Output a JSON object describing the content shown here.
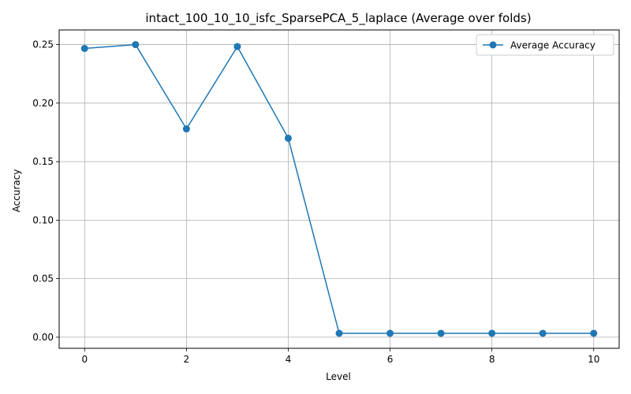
{
  "chart_data": {
    "type": "line",
    "title": "intact_100_10_10_isfc_SparsePCA_5_laplace (Average over folds)",
    "xlabel": "Level",
    "ylabel": "Accuracy",
    "x": [
      0,
      1,
      2,
      3,
      4,
      5,
      6,
      7,
      8,
      9,
      10
    ],
    "series": [
      {
        "name": "Average Accuracy",
        "color": "#1f77b4",
        "marker": "circle",
        "values": [
          0.2467,
          0.25,
          0.178,
          0.2483,
          0.17,
          0.0033,
          0.0033,
          0.0033,
          0.0033,
          0.0033,
          0.0033
        ]
      }
    ],
    "xlim": [
      -0.5,
      10.5
    ],
    "ylim": [
      -0.0095,
      0.2625
    ],
    "xticks": [
      0,
      2,
      4,
      6,
      8,
      10
    ],
    "xtick_labels": [
      "0",
      "2",
      "4",
      "6",
      "8",
      "10"
    ],
    "yticks": [
      0,
      0.05,
      0.1,
      0.15,
      0.2,
      0.25
    ],
    "ytick_labels": [
      "0.00",
      "0.05",
      "0.10",
      "0.15",
      "0.20",
      "0.25"
    ],
    "grid": true,
    "legend_position": "top-right"
  }
}
